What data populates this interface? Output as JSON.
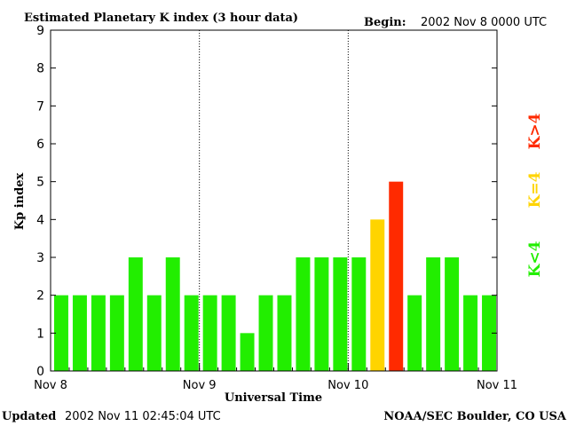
{
  "header": {
    "title": "Estimated Planetary K index (3 hour data)",
    "begin_label": "Begin:",
    "begin_value": "2002 Nov 8 0000 UTC"
  },
  "footer": {
    "updated_label": "Updated",
    "updated_value": "2002 Nov 11 02:45:04 UTC",
    "credit": "NOAA/SEC Boulder, CO USA"
  },
  "legend": {
    "low_label": "K<4",
    "mid_label": "K=4",
    "high_label": "K>4"
  },
  "colors": {
    "low": "#22ee00",
    "mid": "#ffd400",
    "high": "#ff2a00",
    "axis": "#000000"
  },
  "chart_data": {
    "type": "bar",
    "title": "Estimated Planetary K index (3 hour data)",
    "xlabel": "Universal Time",
    "ylabel": "Kp index",
    "ylim": [
      0,
      9
    ],
    "yticks": [
      0,
      1,
      2,
      3,
      4,
      5,
      6,
      7,
      8,
      9
    ],
    "x_range_hours": [
      0,
      72
    ],
    "bar_interval_hours": 3,
    "xticks": [
      {
        "hour": 0,
        "label": "Nov 8"
      },
      {
        "hour": 24,
        "label": "Nov 9"
      },
      {
        "hour": 48,
        "label": "Nov 10"
      },
      {
        "hour": 72,
        "label": "Nov 11"
      }
    ],
    "day_dividers_hours": [
      24,
      48
    ],
    "values": [
      2,
      2,
      2,
      2,
      3,
      2,
      3,
      2,
      2,
      2,
      1,
      2,
      2,
      3,
      3,
      3,
      3,
      4,
      5,
      2,
      3,
      3,
      2,
      2
    ]
  }
}
